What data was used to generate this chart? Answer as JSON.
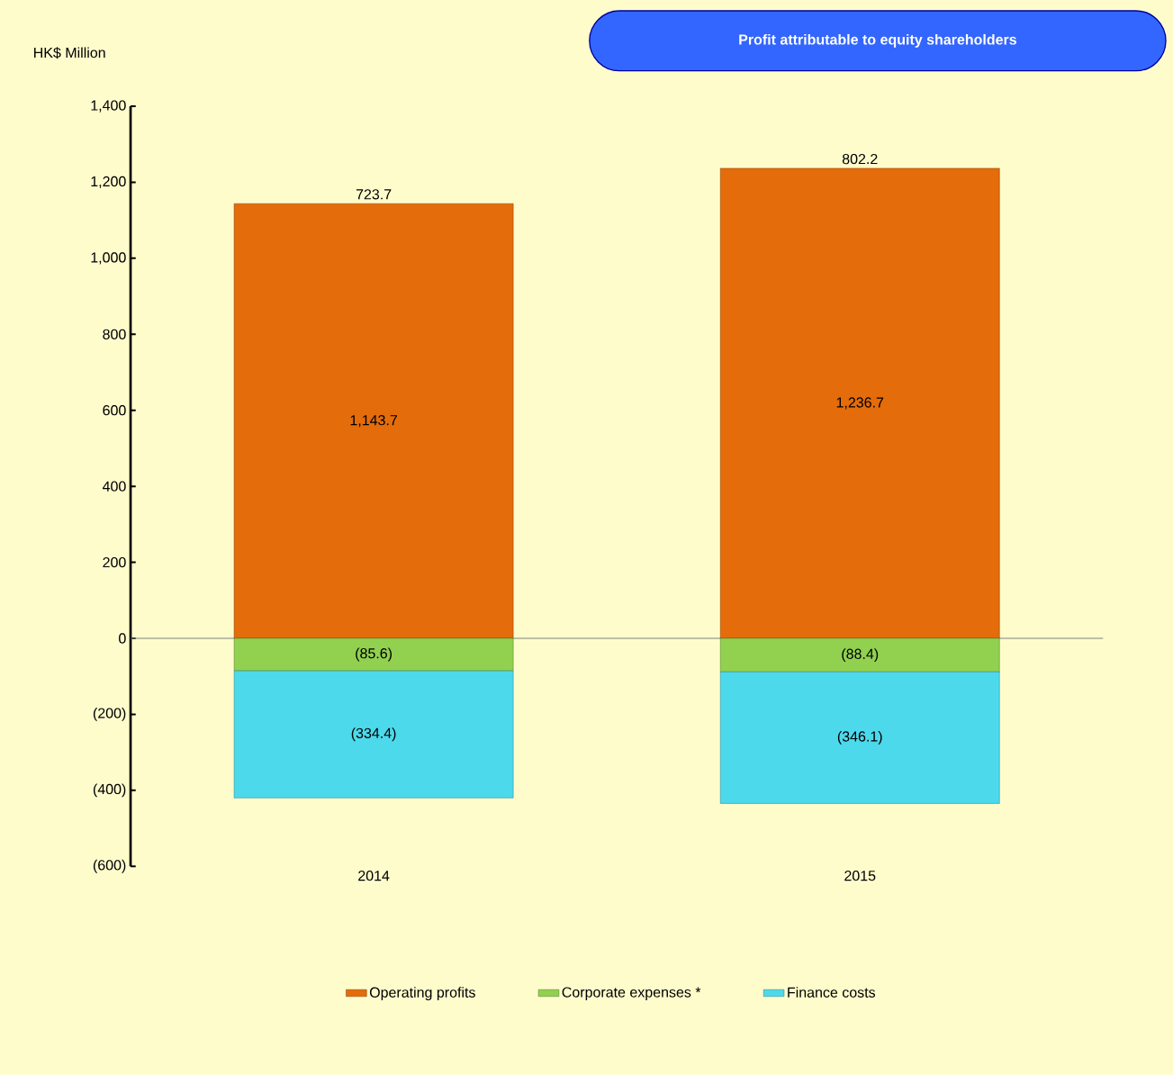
{
  "chart_data": {
    "type": "bar",
    "stacked": true,
    "title": "Profit attributable  to equity shareholders",
    "ylabel": "HK$ Million",
    "categories": [
      "2014",
      "2015"
    ],
    "series": [
      {
        "name": "Operating profits",
        "color": "#e46c0a",
        "values": [
          1143.7,
          1236.7
        ],
        "value_labels": [
          "1,143.7",
          "1,236.7"
        ]
      },
      {
        "name": "Corporate expenses *",
        "color": "#92d050",
        "values": [
          -85.6,
          -88.4
        ],
        "value_labels": [
          "(85.6)",
          "(88.4)"
        ]
      },
      {
        "name": "Finance costs",
        "color": "#4dd9ec",
        "values": [
          -334.4,
          -346.1
        ],
        "value_labels": [
          "(334.4)",
          "(346.1)"
        ]
      }
    ],
    "totals": [
      "723.7",
      "802.2"
    ],
    "ylim": [
      -600,
      1400
    ],
    "yticks": [
      {
        "value": -600,
        "label": "(600)"
      },
      {
        "value": -400,
        "label": "(400)"
      },
      {
        "value": -200,
        "label": "(200)"
      },
      0,
      {
        "value": 200,
        "label": "200"
      },
      {
        "value": 400,
        "label": "400"
      },
      {
        "value": 600,
        "label": "600"
      },
      {
        "value": 800,
        "label": "800"
      },
      {
        "value": 1000,
        "label": "1,000"
      },
      {
        "value": 1200,
        "label": "1,200"
      },
      {
        "value": 1400,
        "label": "1,400"
      }
    ],
    "legend": "bottom"
  }
}
